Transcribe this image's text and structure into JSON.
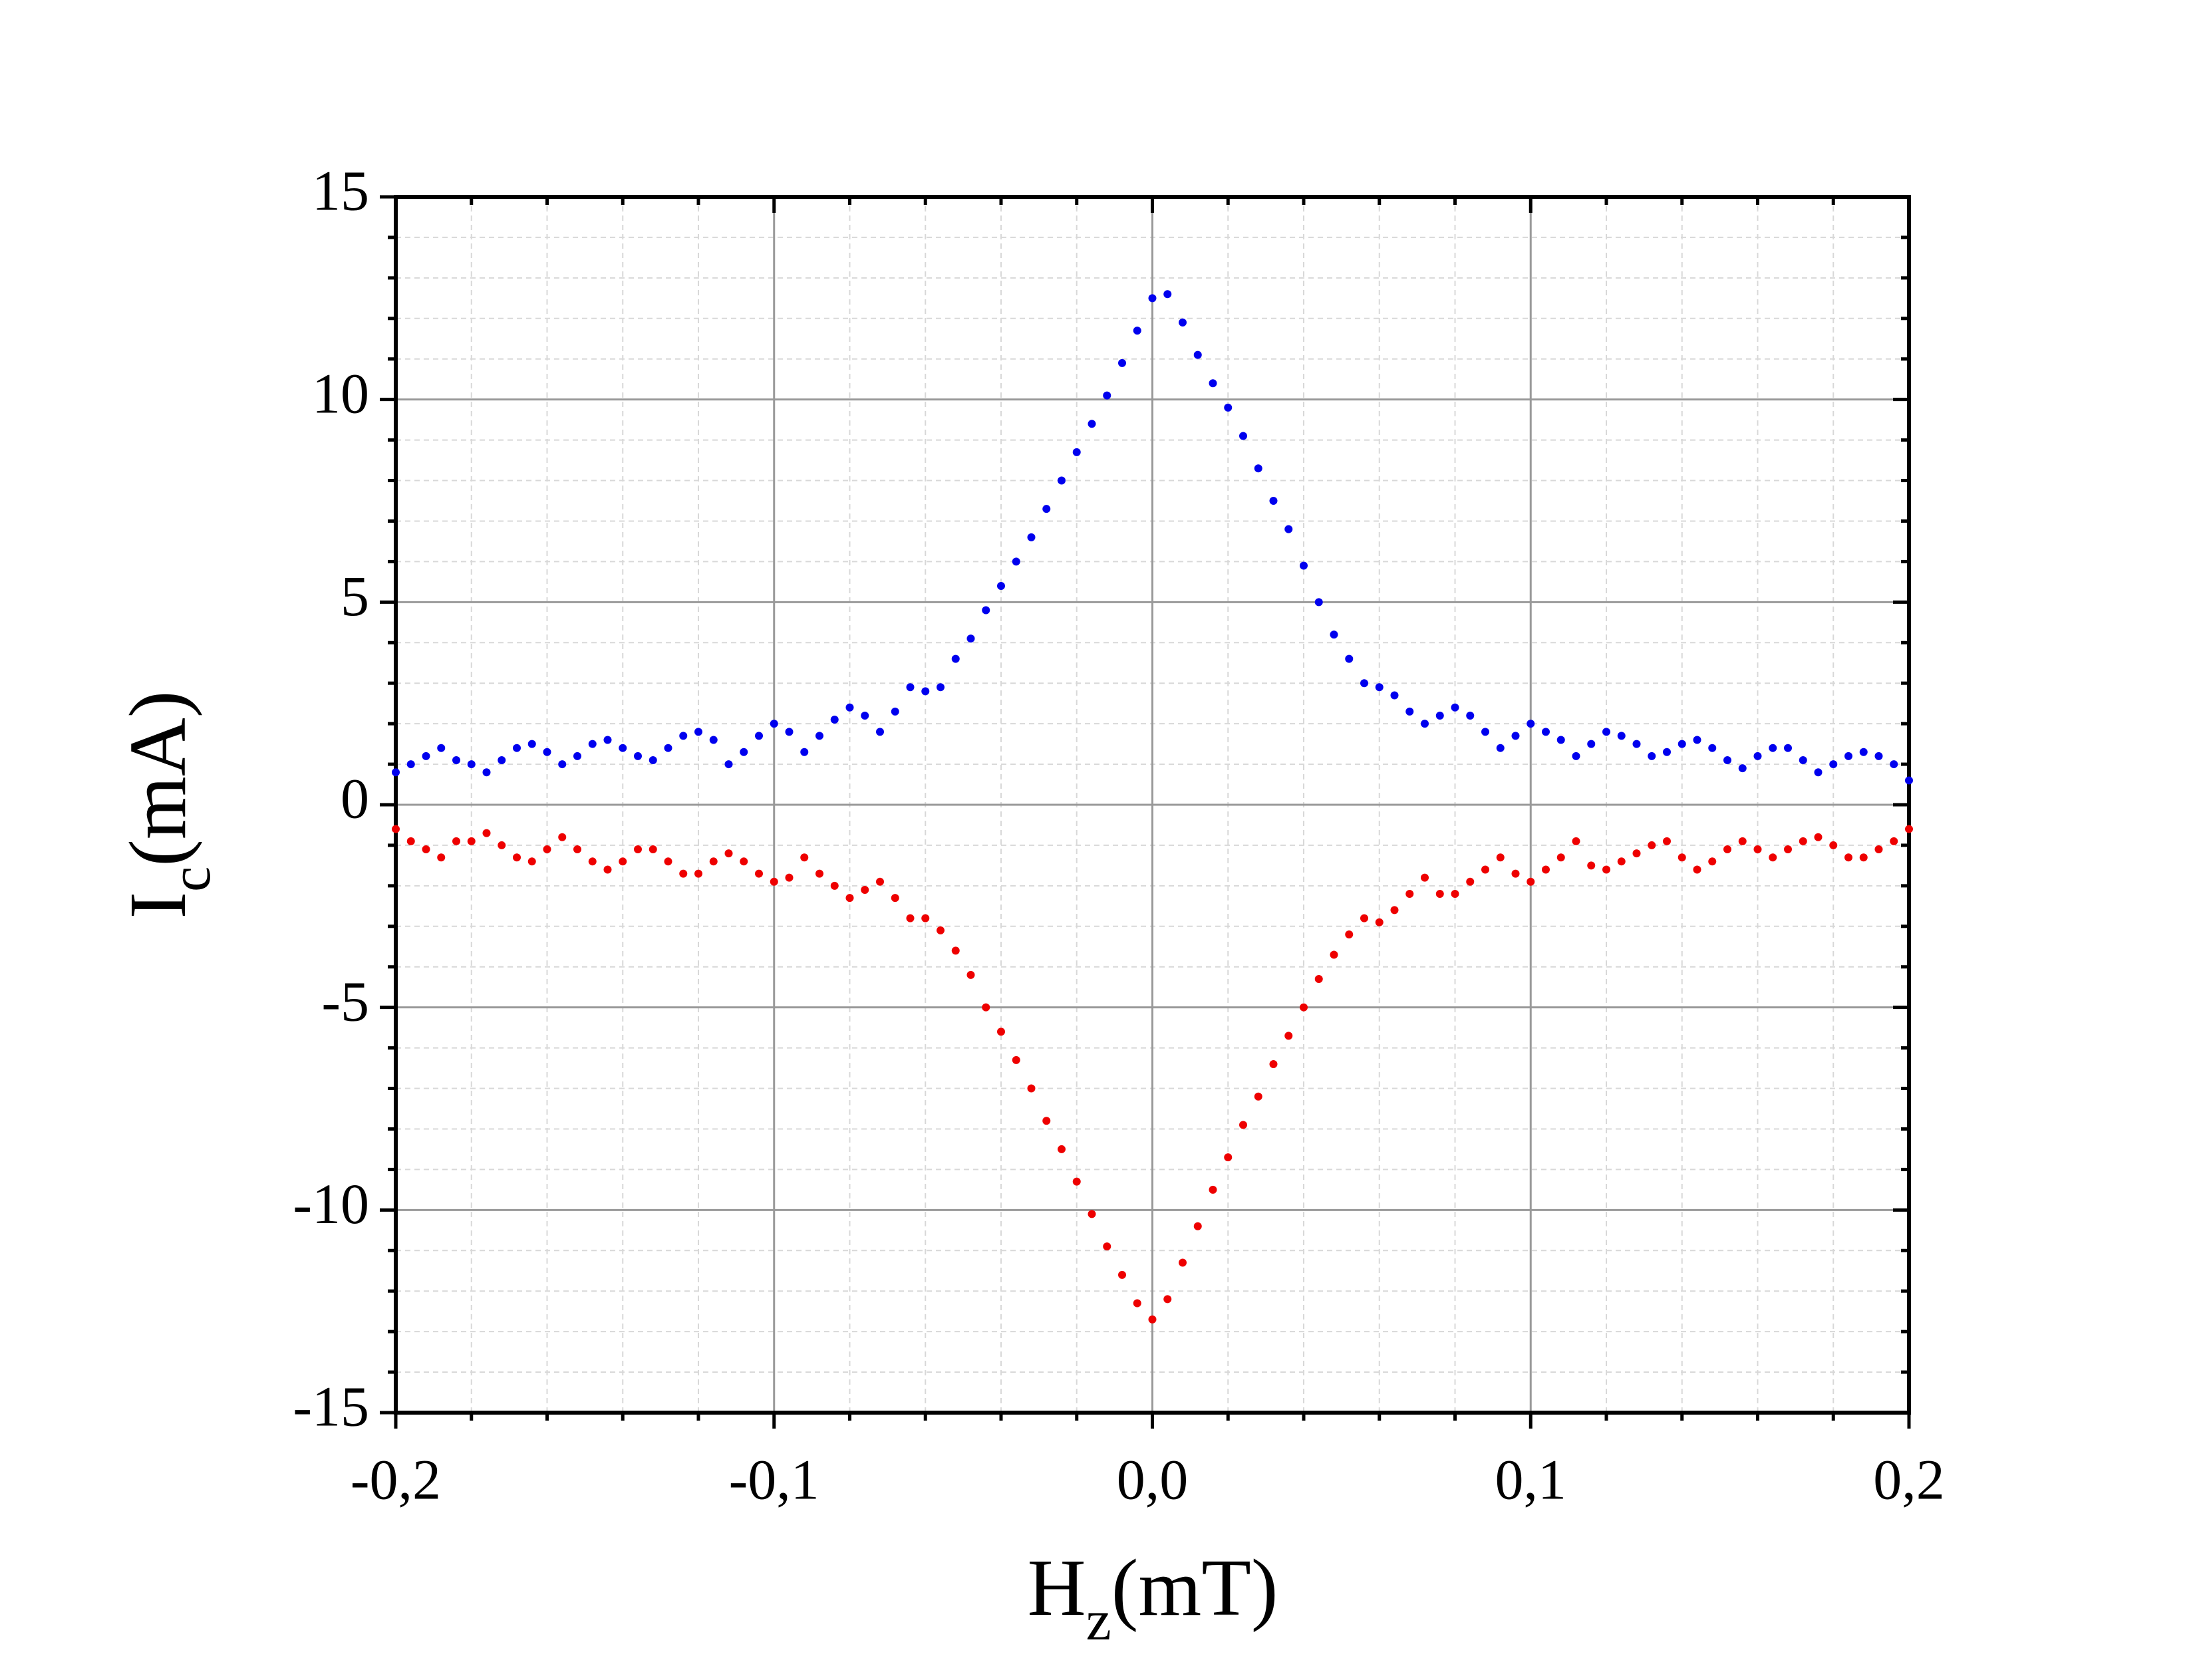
{
  "chart_data": {
    "type": "scatter",
    "xlabel": {
      "main": "H",
      "sub": "z",
      "unit": "(mT)"
    },
    "ylabel": {
      "main": "I",
      "sub": "c",
      "unit": "(mA)"
    },
    "x": [
      -0.2,
      -0.196,
      -0.192,
      -0.188,
      -0.184,
      -0.18,
      -0.176,
      -0.172,
      -0.168,
      -0.164,
      -0.16,
      -0.156,
      -0.152,
      -0.148,
      -0.144,
      -0.14,
      -0.136,
      -0.132,
      -0.128,
      -0.124,
      -0.12,
      -0.116,
      -0.112,
      -0.108,
      -0.104,
      -0.1,
      -0.096,
      -0.092,
      -0.088,
      -0.084,
      -0.08,
      -0.076,
      -0.072,
      -0.068,
      -0.064,
      -0.06,
      -0.056,
      -0.052,
      -0.048,
      -0.044,
      -0.04,
      -0.036,
      -0.032,
      -0.028,
      -0.024,
      -0.02,
      -0.016,
      -0.012,
      -0.008,
      -0.004,
      0,
      0.004,
      0.008,
      0.012,
      0.016,
      0.02,
      0.024,
      0.028,
      0.032,
      0.036,
      0.04,
      0.044,
      0.048,
      0.052,
      0.056,
      0.06,
      0.064,
      0.068,
      0.072,
      0.076,
      0.08,
      0.084,
      0.088,
      0.092,
      0.096,
      0.1,
      0.104,
      0.108,
      0.112,
      0.116,
      0.12,
      0.124,
      0.128,
      0.132,
      0.136,
      0.14,
      0.144,
      0.148,
      0.152,
      0.156,
      0.16,
      0.164,
      0.168,
      0.172,
      0.176,
      0.18,
      0.184,
      0.188,
      0.192,
      0.196,
      0.2
    ],
    "series": [
      {
        "color": "#0000ee",
        "values": [
          0.8,
          1.0,
          1.2,
          1.4,
          1.1,
          1.0,
          0.8,
          1.1,
          1.4,
          1.5,
          1.3,
          1.0,
          1.2,
          1.5,
          1.6,
          1.4,
          1.2,
          1.1,
          1.4,
          1.7,
          1.8,
          1.6,
          1.0,
          1.3,
          1.7,
          2.0,
          1.8,
          1.3,
          1.7,
          2.1,
          2.4,
          2.2,
          1.8,
          2.3,
          2.9,
          2.8,
          2.9,
          3.6,
          4.1,
          4.8,
          5.4,
          6.0,
          6.6,
          7.3,
          8.0,
          8.7,
          9.4,
          10.1,
          10.9,
          11.7,
          12.5,
          12.6,
          11.9,
          11.1,
          10.4,
          9.8,
          9.1,
          8.3,
          7.5,
          6.8,
          5.9,
          5.0,
          4.2,
          3.6,
          3.0,
          2.9,
          2.7,
          2.3,
          2.0,
          2.2,
          2.4,
          2.2,
          1.8,
          1.4,
          1.7,
          2.0,
          1.8,
          1.6,
          1.2,
          1.5,
          1.8,
          1.7,
          1.5,
          1.2,
          1.3,
          1.5,
          1.6,
          1.4,
          1.1,
          0.9,
          1.2,
          1.4,
          1.4,
          1.1,
          0.8,
          1.0,
          1.2,
          1.3,
          1.2,
          1.0,
          0.6
        ]
      },
      {
        "color": "#ee0000",
        "values": [
          -0.6,
          -0.9,
          -1.1,
          -1.3,
          -0.9,
          -0.9,
          -0.7,
          -1.0,
          -1.3,
          -1.4,
          -1.1,
          -0.8,
          -1.1,
          -1.4,
          -1.6,
          -1.4,
          -1.1,
          -1.1,
          -1.4,
          -1.7,
          -1.7,
          -1.4,
          -1.2,
          -1.4,
          -1.7,
          -1.9,
          -1.8,
          -1.3,
          -1.7,
          -2.0,
          -2.3,
          -2.1,
          -1.9,
          -2.3,
          -2.8,
          -2.8,
          -3.1,
          -3.6,
          -4.2,
          -5.0,
          -5.6,
          -6.3,
          -7.0,
          -7.8,
          -8.5,
          -9.3,
          -10.1,
          -10.9,
          -11.6,
          -12.3,
          -12.7,
          -12.2,
          -11.3,
          -10.4,
          -9.5,
          -8.7,
          -7.9,
          -7.2,
          -6.4,
          -5.7,
          -5.0,
          -4.3,
          -3.7,
          -3.2,
          -2.8,
          -2.9,
          -2.6,
          -2.2,
          -1.8,
          -2.2,
          -2.2,
          -1.9,
          -1.6,
          -1.3,
          -1.7,
          -1.9,
          -1.6,
          -1.3,
          -0.9,
          -1.5,
          -1.6,
          -1.4,
          -1.2,
          -1.0,
          -0.9,
          -1.3,
          -1.6,
          -1.4,
          -1.1,
          -0.9,
          -1.1,
          -1.3,
          -1.1,
          -0.9,
          -0.8,
          -1.0,
          -1.3,
          -1.3,
          -1.1,
          -0.9,
          -0.6
        ]
      }
    ],
    "xlim": [
      -0.2,
      0.2
    ],
    "xticks": [
      {
        "value": -0.2,
        "label": "-0,2"
      },
      {
        "value": -0.1,
        "label": "-0,1"
      },
      {
        "value": 0,
        "label": "0,0"
      },
      {
        "value": 0.1,
        "label": "0,1"
      },
      {
        "value": 0.2,
        "label": "0,2"
      }
    ],
    "ylim": [
      -15,
      15
    ],
    "yticks": [
      -15,
      -10,
      -5,
      0,
      5,
      10,
      15
    ],
    "grid": true,
    "minor_grid": true,
    "xminor": 4,
    "yminor": 4
  }
}
